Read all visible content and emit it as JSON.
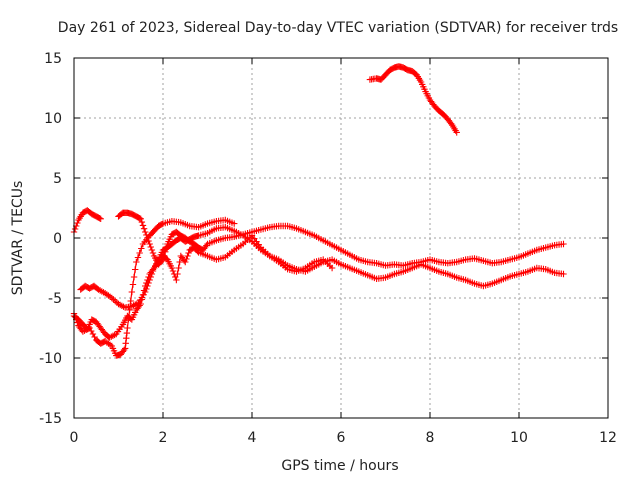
{
  "chart_data": {
    "type": "scatter",
    "title": "Day 261 of 2023, Sidereal Day-to-day VTEC variation (SDTVAR) for receiver trds",
    "xlabel": "GPS time / hours",
    "ylabel": "SDTVAR / TECUs",
    "xlim": [
      0,
      12
    ],
    "ylim": [
      -15,
      15
    ],
    "xticks": [
      0,
      2,
      4,
      6,
      8,
      10,
      12
    ],
    "xtick_labels": [
      "0",
      "2",
      "4",
      "6",
      "8",
      "10",
      "12"
    ],
    "yticks": [
      -15,
      -10,
      -5,
      0,
      5,
      10,
      15
    ],
    "ytick_labels": [
      "-15",
      "-10",
      "-5",
      "0",
      "5",
      "10",
      "15"
    ],
    "grid": true,
    "marker": "plus",
    "color": "#ff0000",
    "series": [
      {
        "name": "track-1",
        "x": [
          0.0,
          0.1,
          0.2,
          0.3,
          0.4,
          0.5,
          0.6
        ],
        "y": [
          0.5,
          1.5,
          2.1,
          2.3,
          2.0,
          1.8,
          1.6
        ]
      },
      {
        "name": "track-2",
        "x": [
          0.0,
          0.1,
          0.2,
          0.35,
          0.5,
          0.6,
          0.7,
          0.85,
          0.95,
          1.05,
          1.15,
          1.2,
          1.3,
          1.4,
          1.55,
          1.7,
          1.8,
          1.9,
          2.0,
          2.2,
          2.4,
          2.6,
          2.8,
          3.0,
          3.2,
          3.4,
          3.6
        ],
        "y": [
          -6.3,
          -7.3,
          -7.8,
          -7.5,
          -8.5,
          -8.8,
          -8.6,
          -9.0,
          -9.8,
          -9.7,
          -9.2,
          -7.5,
          -4.5,
          -2.0,
          -0.5,
          0.2,
          0.6,
          1.0,
          1.2,
          1.4,
          1.3,
          1.0,
          0.9,
          1.2,
          1.4,
          1.5,
          1.2
        ]
      },
      {
        "name": "track-3",
        "x": [
          0.0,
          0.1,
          0.2,
          0.3,
          0.4,
          0.5,
          0.6,
          0.7,
          0.8,
          0.95,
          1.1,
          1.2,
          1.3,
          1.4,
          1.5,
          1.6,
          1.7,
          1.8,
          1.9,
          2.0,
          2.1,
          2.2,
          2.3,
          2.4,
          2.5,
          2.6,
          2.7,
          2.8,
          3.0,
          3.2,
          3.4,
          3.6,
          3.8,
          4.0,
          4.2,
          4.4,
          4.6,
          4.8,
          5.0,
          5.2,
          5.4,
          5.6,
          5.8,
          6.0,
          6.2,
          6.4,
          6.6,
          6.8,
          7.0,
          7.2,
          7.4,
          7.6,
          7.8,
          8.0,
          8.2,
          8.4,
          8.6,
          8.8,
          9.0,
          9.2,
          9.4,
          9.6,
          9.8,
          10.0,
          10.2,
          10.4,
          10.6,
          10.8,
          11.0
        ],
        "y": [
          -6.5,
          -6.8,
          -7.2,
          -7.6,
          -6.8,
          -7.0,
          -7.5,
          -8.0,
          -8.3,
          -8.0,
          -7.2,
          -6.5,
          -6.8,
          -6.0,
          -5.5,
          -4.0,
          -3.0,
          -2.5,
          -1.8,
          -1.0,
          -0.8,
          -0.5,
          -0.2,
          0.0,
          -0.3,
          -0.1,
          0.1,
          0.2,
          0.4,
          0.8,
          0.9,
          0.6,
          0.2,
          -0.3,
          -1.0,
          -1.5,
          -1.8,
          -2.3,
          -2.6,
          -2.8,
          -2.4,
          -2.0,
          -1.8,
          -2.2,
          -2.5,
          -2.8,
          -3.1,
          -3.4,
          -3.3,
          -3.0,
          -2.8,
          -2.5,
          -2.2,
          -2.5,
          -2.8,
          -3.0,
          -3.3,
          -3.5,
          -3.8,
          -4.0,
          -3.8,
          -3.5,
          -3.2,
          -3.0,
          -2.8,
          -2.5,
          -2.6,
          -2.9,
          -3.0
        ]
      },
      {
        "name": "track-4",
        "x": [
          0.15,
          0.25,
          0.35,
          0.45,
          0.55,
          0.7,
          0.85,
          1.0,
          1.15,
          1.3,
          1.45,
          1.6,
          1.7,
          1.8,
          1.9,
          2.0,
          2.1,
          2.2,
          2.3,
          2.4,
          2.5,
          2.6,
          2.7,
          2.8,
          3.0,
          3.2,
          3.4,
          3.6,
          3.8,
          4.0,
          4.2,
          4.4,
          4.6,
          4.8,
          5.0,
          5.2,
          5.4,
          5.6,
          5.8
        ],
        "y": [
          -4.3,
          -4.0,
          -4.2,
          -4.0,
          -4.3,
          -4.6,
          -5.0,
          -5.5,
          -5.8,
          -5.7,
          -5.4,
          -4.5,
          -3.5,
          -2.5,
          -2.0,
          -1.5,
          -1.8,
          -2.5,
          -3.5,
          -1.5,
          -2.0,
          -1.0,
          -0.8,
          -1.2,
          -1.5,
          -1.8,
          -1.6,
          -1.0,
          -0.5,
          0.2,
          -0.8,
          -1.5,
          -2.0,
          -2.6,
          -2.8,
          -2.5,
          -2.0,
          -1.8,
          -2.5
        ]
      },
      {
        "name": "track-5",
        "x": [
          1.0,
          1.1,
          1.2,
          1.3,
          1.4,
          1.5,
          1.6,
          1.7,
          1.8,
          1.9,
          2.0,
          2.1,
          2.2,
          2.3,
          2.4,
          2.5,
          2.6,
          2.7,
          2.8,
          2.9,
          3.0,
          3.2,
          3.4,
          3.6,
          3.8,
          4.0,
          4.2,
          4.4,
          4.6,
          4.8,
          5.0,
          5.2,
          5.4,
          5.6,
          5.8,
          6.0,
          6.2,
          6.4,
          6.6,
          6.8,
          7.0,
          7.2,
          7.4,
          7.6,
          7.8,
          8.0,
          8.2,
          8.4,
          8.6,
          8.8,
          9.0,
          9.2,
          9.4,
          9.6,
          9.8,
          10.0,
          10.2,
          10.4,
          10.6,
          10.8,
          11.0
        ],
        "y": [
          1.8,
          2.1,
          2.1,
          2.0,
          1.8,
          1.6,
          0.5,
          -0.5,
          -1.5,
          -2.2,
          -1.8,
          -0.5,
          0.3,
          0.5,
          0.2,
          0.0,
          -0.3,
          -0.5,
          -0.8,
          -1.0,
          -0.5,
          -0.2,
          0.0,
          0.1,
          0.3,
          0.5,
          0.7,
          0.9,
          1.0,
          1.0,
          0.8,
          0.5,
          0.2,
          -0.2,
          -0.6,
          -1.0,
          -1.4,
          -1.8,
          -2.0,
          -2.1,
          -2.3,
          -2.2,
          -2.3,
          -2.1,
          -2.0,
          -1.8,
          -2.0,
          -2.1,
          -2.0,
          -1.8,
          -1.7,
          -1.9,
          -2.1,
          -2.0,
          -1.8,
          -1.6,
          -1.3,
          -1.0,
          -0.8,
          -0.6,
          -0.5
        ]
      },
      {
        "name": "track-6",
        "x": [
          6.65,
          6.8,
          6.9,
          7.0,
          7.1,
          7.2,
          7.3,
          7.4,
          7.5,
          7.6,
          7.7,
          7.8,
          7.9,
          8.0,
          8.1,
          8.2,
          8.3,
          8.4,
          8.5,
          8.6
        ],
        "y": [
          13.2,
          13.3,
          13.2,
          13.6,
          14.0,
          14.2,
          14.3,
          14.2,
          14.0,
          13.9,
          13.6,
          13.0,
          12.2,
          11.5,
          11.0,
          10.6,
          10.3,
          9.9,
          9.4,
          8.8
        ]
      }
    ]
  }
}
